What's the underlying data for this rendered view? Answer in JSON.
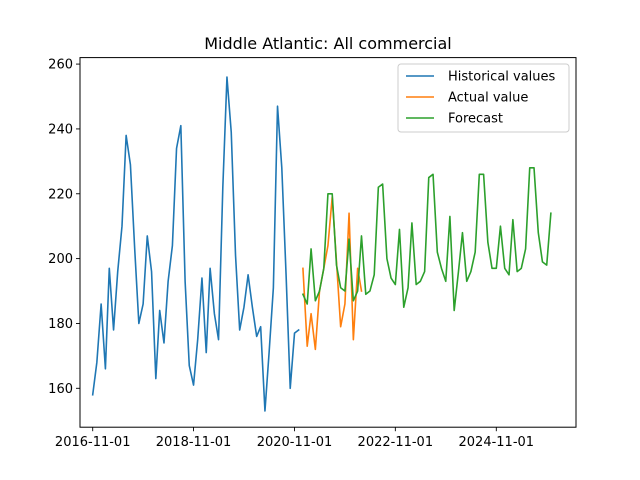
{
  "chart_data": {
    "type": "line",
    "title": "Middle Atlantic: All commercial",
    "xlabel": "",
    "ylabel": "",
    "x_ticks": [
      "2016-11-01",
      "2018-11-01",
      "2020-11-01",
      "2022-11-01",
      "2024-11-01"
    ],
    "y_ticks": [
      160,
      180,
      200,
      220,
      240,
      260
    ],
    "xlim": [
      "2016-08-01",
      "2026-06-01"
    ],
    "ylim": [
      148,
      262
    ],
    "grid": false,
    "legend_position": "top-right",
    "series": [
      {
        "name": "Historical values",
        "color": "#1f77b4",
        "x": [
          "2016-11-01",
          "2016-12-01",
          "2017-01-01",
          "2017-02-01",
          "2017-03-01",
          "2017-04-01",
          "2017-05-01",
          "2017-06-01",
          "2017-07-01",
          "2017-08-01",
          "2017-09-01",
          "2017-10-01",
          "2017-11-01",
          "2017-12-01",
          "2018-01-01",
          "2018-02-01",
          "2018-03-01",
          "2018-04-01",
          "2018-05-01",
          "2018-06-01",
          "2018-07-01",
          "2018-08-01",
          "2018-09-01",
          "2018-10-01",
          "2018-11-01",
          "2018-12-01",
          "2019-01-01",
          "2019-02-01",
          "2019-03-01",
          "2019-04-01",
          "2019-05-01",
          "2019-06-01",
          "2019-07-01",
          "2019-08-01",
          "2019-09-01",
          "2019-10-01",
          "2019-11-01",
          "2019-12-01",
          "2020-01-01",
          "2020-02-01",
          "2020-03-01",
          "2020-04-01",
          "2020-05-01",
          "2020-06-01",
          "2020-07-01",
          "2020-08-01",
          "2020-09-01",
          "2020-10-01",
          "2020-11-01",
          "2020-12-01"
        ],
        "values": [
          158,
          168,
          186,
          166,
          197,
          178,
          196,
          210,
          238,
          229,
          203,
          180,
          186,
          207,
          196,
          163,
          184,
          174,
          193,
          204,
          234,
          241,
          193,
          167,
          161,
          175,
          194,
          171,
          197,
          183,
          175,
          222,
          256,
          239,
          201,
          178,
          185,
          195,
          185,
          176,
          179,
          153,
          171,
          191,
          247,
          228,
          195,
          160,
          177,
          178
        ]
      },
      {
        "name": "Actual value",
        "color": "#ff7f0e",
        "x": [
          "2021-01-01",
          "2021-02-01",
          "2021-03-01",
          "2021-04-01",
          "2021-05-01",
          "2021-06-01",
          "2021-07-01",
          "2021-08-01",
          "2021-09-01",
          "2021-10-01",
          "2021-11-01",
          "2021-12-01",
          "2022-01-01",
          "2022-02-01",
          "2022-03-01"
        ],
        "values": [
          197,
          173,
          183,
          172,
          190,
          197,
          204,
          219,
          199,
          179,
          186,
          214,
          175,
          197,
          190
        ]
      },
      {
        "name": "Forecast",
        "color": "#2ca02c",
        "x": [
          "2021-01-01",
          "2021-02-01",
          "2021-03-01",
          "2021-04-01",
          "2021-05-01",
          "2021-06-01",
          "2021-07-01",
          "2021-08-01",
          "2021-09-01",
          "2021-10-01",
          "2021-11-01",
          "2021-12-01",
          "2022-01-01",
          "2022-02-01",
          "2022-03-01",
          "2022-04-01",
          "2022-05-01",
          "2022-06-01",
          "2022-07-01",
          "2022-08-01",
          "2022-09-01",
          "2022-10-01",
          "2022-11-01",
          "2022-12-01",
          "2023-01-01",
          "2023-02-01",
          "2023-03-01",
          "2023-04-01",
          "2023-05-01",
          "2023-06-01",
          "2023-07-01",
          "2023-08-01",
          "2023-09-01",
          "2023-10-01",
          "2023-11-01",
          "2023-12-01",
          "2024-01-01",
          "2024-02-01",
          "2024-03-01",
          "2024-04-01",
          "2024-05-01",
          "2024-06-01",
          "2024-07-01",
          "2024-08-01",
          "2024-09-01",
          "2024-10-01",
          "2024-11-01",
          "2024-12-01",
          "2025-01-01",
          "2025-02-01",
          "2025-03-01",
          "2025-04-01",
          "2025-05-01",
          "2025-06-01",
          "2025-07-01",
          "2025-08-01",
          "2025-09-01",
          "2025-10-01",
          "2025-11-01",
          "2025-12-01",
          "2026-01-01"
        ],
        "values": [
          189,
          186,
          203,
          187,
          190,
          197,
          220,
          220,
          198,
          191,
          190,
          206,
          187,
          190,
          207,
          189,
          190,
          195,
          222,
          223,
          200,
          194,
          192,
          209,
          185,
          191,
          211,
          192,
          193,
          196,
          225,
          226,
          202,
          197,
          193,
          213,
          184,
          196,
          208,
          193,
          196,
          202,
          226,
          226,
          205,
          197,
          197,
          210,
          197,
          195,
          212,
          196,
          197,
          203,
          228,
          228,
          208,
          199,
          198,
          214,
          null
        ]
      }
    ]
  }
}
